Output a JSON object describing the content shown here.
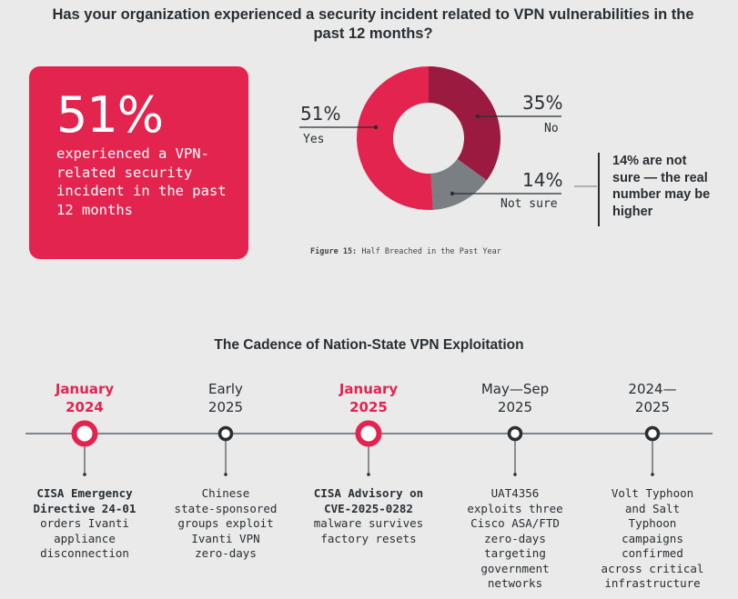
{
  "title": "Has your organization experienced a security incident related to VPN vulnerabilities in the past 12 months?",
  "callout": {
    "value": "51%",
    "text": "experienced a VPN-related security incident in the past 12 months"
  },
  "note": "14% are not sure — the real number may be higher",
  "caption": {
    "label": "Figure 15:",
    "text": "Half Breached in the Past Year"
  },
  "colors": {
    "yes": "#e3244f",
    "no": "#9b1a40",
    "not_sure": "#7a7f83",
    "dark": "#2a2e33"
  },
  "chart_data": {
    "type": "pie",
    "donut": true,
    "categories": [
      "Yes",
      "No",
      "Not sure"
    ],
    "values": [
      51,
      35,
      14
    ],
    "labels": [
      "51%",
      "35%",
      "14%"
    ],
    "title": "Figure 15: Half Breached in the Past Year"
  },
  "timeline": {
    "title": "The Cadence of Nation-State VPN Exploitation",
    "events": [
      {
        "date1": "January",
        "date2": "2024",
        "bold1": "CISA Emergency",
        "bold2": "Directive 24-01",
        "text": [
          "orders Ivanti",
          "appliance",
          "disconnection"
        ],
        "highlight": true
      },
      {
        "date1": "Early",
        "date2": "2025",
        "bold1": "",
        "bold2": "",
        "text": [
          "Chinese",
          "state-sponsored",
          "groups exploit",
          "Ivanti VPN",
          "zero-days"
        ],
        "highlight": false
      },
      {
        "date1": "January",
        "date2": "2025",
        "bold1": "CISA Advisory on",
        "bold2": "CVE-2025-0282",
        "text": [
          "malware survives",
          "factory resets"
        ],
        "highlight": true
      },
      {
        "date1": "May—Sep",
        "date2": "2025",
        "bold1": "",
        "bold2": "",
        "text": [
          "UAT4356",
          "exploits three",
          "Cisco ASA/FTD",
          "zero-days",
          "targeting",
          "government",
          "networks"
        ],
        "highlight": false
      },
      {
        "date1": "2024—",
        "date2": "2025",
        "bold1": "",
        "bold2": "",
        "text": [
          "Volt Typhoon",
          "and Salt",
          "Typhoon",
          "campaigns",
          "confirmed",
          "across critical",
          "infrastructure"
        ],
        "highlight": false
      }
    ]
  }
}
